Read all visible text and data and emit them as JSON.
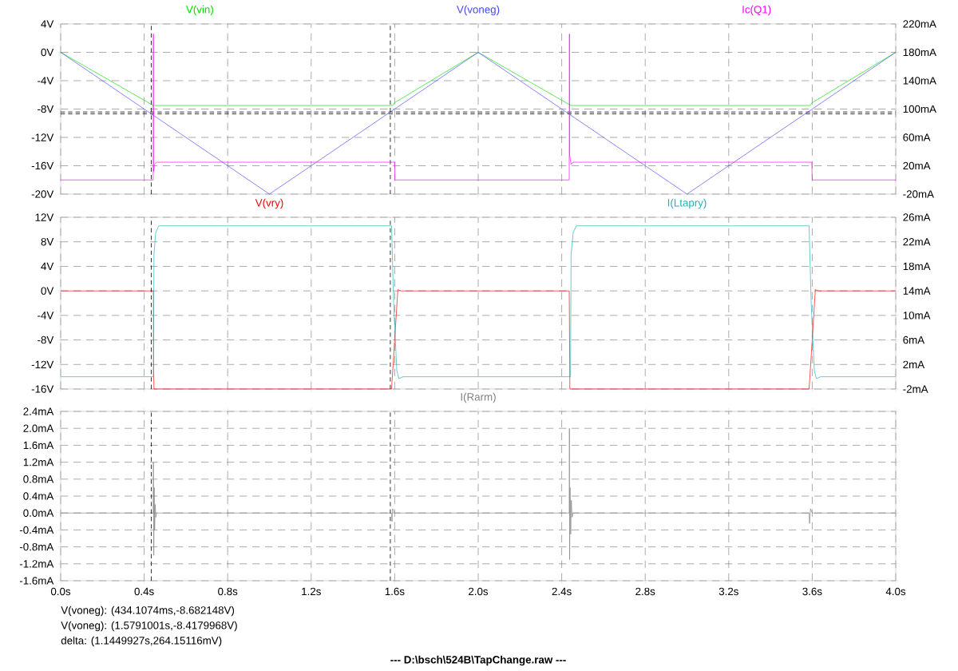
{
  "chart_data": [
    {
      "type": "line",
      "legend": "top",
      "grid": true,
      "tick_labels": "y",
      "line_style": "solid",
      "xlim": [
        0,
        4
      ],
      "xticks": [
        {
          "value": 0,
          "label": null
        },
        {
          "value": 0.4,
          "label": null
        },
        {
          "value": 0.8,
          "label": null
        },
        {
          "value": 1.2,
          "label": null
        },
        {
          "value": 1.6,
          "label": null
        },
        {
          "value": 2.0,
          "label": null
        },
        {
          "value": 2.4,
          "label": null
        },
        {
          "value": 2.8,
          "label": null
        },
        {
          "value": 3.2,
          "label": null
        },
        {
          "value": 3.6,
          "label": null
        },
        {
          "value": 4.0,
          "label": null
        }
      ],
      "ylim": [
        -20,
        4
      ],
      "yticks": [
        {
          "value": -20,
          "label": "-20V"
        },
        {
          "value": -16,
          "label": "-16V"
        },
        {
          "value": -12,
          "label": "-12V"
        },
        {
          "value": -8,
          "label": "-8V"
        },
        {
          "value": -4,
          "label": "-4V"
        },
        {
          "value": 0,
          "label": "0V"
        },
        {
          "value": 4,
          "label": "4V"
        }
      ],
      "y2lim": [
        -20,
        220
      ],
      "y2ticks": [
        {
          "value": -20,
          "label": "-20mA"
        },
        {
          "value": 20,
          "label": "20mA"
        },
        {
          "value": 60,
          "label": "60mA"
        },
        {
          "value": 100,
          "label": "100mA"
        },
        {
          "value": 140,
          "label": "140mA"
        },
        {
          "value": 180,
          "label": "180mA"
        },
        {
          "value": 220,
          "label": "220mA"
        }
      ],
      "series": [
        {
          "name": "V(vin)",
          "color": "#00e000",
          "x": [
            0,
            0.444,
            1.59,
            1.6,
            2.0,
            2.444,
            3.59,
            3.6,
            4.0
          ],
          "values": [
            0,
            -7.5,
            -7.5,
            -7.1,
            0,
            -7.5,
            -7.5,
            -7.1,
            0
          ]
        },
        {
          "name": "V(voneg)",
          "color": "#4848ff",
          "x": [
            0,
            1,
            2,
            3,
            4
          ],
          "values": [
            0,
            -20,
            0,
            -20,
            0
          ]
        },
        {
          "name": "Ic(Q1)",
          "color": "#ff00ff",
          "axis": "y2",
          "x": [
            0,
            0.443,
            0.444,
            0.445,
            0.45,
            0.46,
            1.6,
            1.601,
            2.436,
            2.437,
            2.438,
            2.445,
            2.455,
            3.598,
            3.6,
            4.0
          ],
          "values": [
            0,
            0,
            206,
            12,
            22,
            25,
            25,
            0,
            0,
            206,
            35,
            22,
            25,
            25,
            0,
            0
          ]
        }
      ],
      "ref_lines": [
        {
          "axis": "x",
          "value": 0.434,
          "color": "#000000",
          "line_style": "dashed"
        },
        {
          "axis": "x",
          "value": 1.579,
          "color": "#000000",
          "line_style": "dashed"
        },
        {
          "axis": "y",
          "value": -8.682,
          "color": "#000000",
          "line_style": "dashed"
        },
        {
          "axis": "y",
          "value": -8.418,
          "color": "#000000",
          "line_style": "dashed"
        }
      ]
    },
    {
      "type": "line",
      "legend": "top",
      "grid": true,
      "tick_labels": "y",
      "line_style": "solid",
      "xlim": [
        0,
        4
      ],
      "xticks": [
        {
          "value": 0,
          "label": null
        },
        {
          "value": 0.4,
          "label": null
        },
        {
          "value": 0.8,
          "label": null
        },
        {
          "value": 1.2,
          "label": null
        },
        {
          "value": 1.6,
          "label": null
        },
        {
          "value": 2.0,
          "label": null
        },
        {
          "value": 2.4,
          "label": null
        },
        {
          "value": 2.8,
          "label": null
        },
        {
          "value": 3.2,
          "label": null
        },
        {
          "value": 3.6,
          "label": null
        },
        {
          "value": 4.0,
          "label": null
        }
      ],
      "ylim": [
        -16,
        12
      ],
      "yticks": [
        {
          "value": -16,
          "label": "-16V"
        },
        {
          "value": -12,
          "label": "-12V"
        },
        {
          "value": -8,
          "label": "-8V"
        },
        {
          "value": -4,
          "label": "-4V"
        },
        {
          "value": 0,
          "label": "0V"
        },
        {
          "value": 4,
          "label": "4V"
        },
        {
          "value": 8,
          "label": "8V"
        },
        {
          "value": 12,
          "label": "12V"
        }
      ],
      "y2lim": [
        -2,
        26
      ],
      "y2ticks": [
        {
          "value": -2,
          "label": "-2mA"
        },
        {
          "value": 2,
          "label": "2mA"
        },
        {
          "value": 6,
          "label": "6mA"
        },
        {
          "value": 10,
          "label": "10mA"
        },
        {
          "value": 14,
          "label": "14mA"
        },
        {
          "value": 18,
          "label": "18mA"
        },
        {
          "value": 22,
          "label": "22mA"
        },
        {
          "value": 26,
          "label": "26mA"
        }
      ],
      "series": [
        {
          "name": "V(vry)",
          "color": "#ff0000",
          "x": [
            0,
            0.444,
            0.445,
            0.447,
            1.585,
            1.6,
            1.615,
            1.63,
            2.436,
            2.437,
            2.439,
            3.585,
            3.6,
            3.615,
            3.63,
            4.0
          ],
          "values": [
            0,
            0,
            -13,
            -16,
            -16,
            -8,
            0.2,
            0,
            0,
            -4,
            -16,
            -16,
            -8,
            0.2,
            0,
            0
          ]
        },
        {
          "name": "I(Ltapry)",
          "color": "#1ab4b4",
          "axis": "y2",
          "x": [
            0,
            0.444,
            0.447,
            0.455,
            0.47,
            1.585,
            1.595,
            1.61,
            1.62,
            1.64,
            2.442,
            2.445,
            2.455,
            2.47,
            3.585,
            3.595,
            3.61,
            3.62,
            3.64,
            4.0
          ],
          "values": [
            0,
            0,
            20,
            23.5,
            24.6,
            24.6,
            12,
            1,
            -0.3,
            0,
            0,
            20,
            23.5,
            24.6,
            24.6,
            12,
            1,
            -0.3,
            0,
            0
          ]
        }
      ],
      "ref_lines": [
        {
          "axis": "x",
          "value": 0.434,
          "color": "#000000",
          "line_style": "dashed"
        },
        {
          "axis": "x",
          "value": 1.579,
          "color": "#000000",
          "line_style": "dashed"
        }
      ]
    },
    {
      "type": "line",
      "legend": "top",
      "grid": true,
      "line_style": "solid",
      "xlim": [
        0,
        4
      ],
      "xticks": [
        {
          "value": 0,
          "label": "0.0s"
        },
        {
          "value": 0.4,
          "label": "0.4s"
        },
        {
          "value": 0.8,
          "label": "0.8s"
        },
        {
          "value": 1.2,
          "label": "1.2s"
        },
        {
          "value": 1.6,
          "label": "1.6s"
        },
        {
          "value": 2.0,
          "label": "2.0s"
        },
        {
          "value": 2.4,
          "label": "2.4s"
        },
        {
          "value": 2.8,
          "label": "2.8s"
        },
        {
          "value": 3.2,
          "label": "3.2s"
        },
        {
          "value": 3.6,
          "label": "3.6s"
        },
        {
          "value": 4.0,
          "label": "4.0s"
        }
      ],
      "ylim": [
        -1.6,
        2.4
      ],
      "yticks": [
        {
          "value": -1.6,
          "label": "-1.6mA"
        },
        {
          "value": -1.2,
          "label": "-1.2mA"
        },
        {
          "value": -0.8,
          "label": "-0.8mA"
        },
        {
          "value": -0.4,
          "label": "-0.4mA"
        },
        {
          "value": 0,
          "label": "0.0mA"
        },
        {
          "value": 0.4,
          "label": "0.4mA"
        },
        {
          "value": 0.8,
          "label": "0.8mA"
        },
        {
          "value": 1.2,
          "label": "1.2mA"
        },
        {
          "value": 1.6,
          "label": "1.6mA"
        },
        {
          "value": 2.0,
          "label": "2.0mA"
        },
        {
          "value": 2.4,
          "label": "2.4mA"
        }
      ],
      "series": [
        {
          "name": "I(Rarm)",
          "color": "#808080",
          "x": [
            0,
            0.443,
            0.444,
            0.446,
            0.448,
            0.45,
            0.453,
            0.456,
            0.46,
            1.585,
            1.587,
            1.59,
            1.6,
            2.436,
            2.437,
            2.438,
            2.44,
            2.443,
            2.446,
            2.45,
            2.455,
            3.585,
            3.587,
            3.592,
            3.6,
            4.0
          ],
          "values": [
            0,
            0,
            1.2,
            -1.0,
            0.6,
            -0.4,
            0.2,
            -0.1,
            0,
            0,
            -0.2,
            0.1,
            0,
            0,
            2.0,
            -1.1,
            0.6,
            -0.5,
            0.3,
            -0.1,
            0,
            0,
            -0.25,
            0.1,
            0,
            0
          ]
        }
      ],
      "ref_lines": [
        {
          "axis": "x",
          "value": 0.434,
          "color": "#000000",
          "line_style": "dashed"
        },
        {
          "axis": "x",
          "value": 1.579,
          "color": "#000000",
          "line_style": "dashed"
        }
      ],
      "annotations": [
        "V(voneg): (434.1074ms,-8.682148V)",
        "V(voneg): (1.5791001s,-8.4179968V)",
        "delta: (1.1449927s,264.15116mV)",
        "---  D:\\bsch\\524B\\TapChange.raw  ---"
      ]
    }
  ]
}
